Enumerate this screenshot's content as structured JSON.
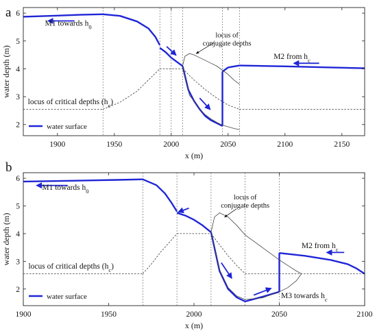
{
  "chart_data": [
    {
      "panel": "a",
      "type": "line",
      "xlabel": "x (m)",
      "ylabel": "water depth (m)",
      "xlim": [
        1870,
        2170
      ],
      "ylim": [
        1.6,
        6.2
      ],
      "xticks": [
        1900,
        1950,
        2000,
        2050,
        2100,
        2150
      ],
      "yticks": [
        2,
        3,
        4,
        5,
        6
      ],
      "legend": {
        "label": "water surface",
        "position": "bottom-left"
      },
      "breakpoints": [
        1940,
        1990,
        2000,
        2010,
        2045,
        2060
      ],
      "series": [
        {
          "name": "water surface",
          "segments": [
            {
              "x": [
                1870,
                1900,
                1920,
                1940
              ],
              "y": [
                5.87,
                5.91,
                5.94,
                5.96
              ]
            },
            {
              "x": [
                1940,
                1955,
                1970,
                1980,
                1986,
                1990
              ],
              "y": [
                5.96,
                5.9,
                5.7,
                5.45,
                5.15,
                4.85
              ]
            },
            {
              "x": [
                1990,
                1995,
                2000,
                2005,
                2010
              ],
              "y": [
                4.75,
                4.6,
                4.4,
                4.25,
                4.1
              ]
            },
            {
              "x": [
                2010,
                2015,
                2020,
                2025,
                2030,
                2035,
                2040,
                2045
              ],
              "y": [
                4.1,
                3.25,
                2.85,
                2.55,
                2.3,
                2.15,
                2.05,
                1.95
              ]
            },
            {
              "x": [
                2045,
                2045
              ],
              "y": [
                1.95,
                3.9
              ]
            },
            {
              "x": [
                2045,
                2050
              ],
              "y": [
                3.9,
                4.05
              ]
            },
            {
              "x": [
                2050,
                2060
              ],
              "y": [
                4.05,
                4.12
              ]
            },
            {
              "x": [
                2060,
                2100,
                2140,
                2170
              ],
              "y": [
                4.12,
                4.09,
                4.05,
                4.02
              ]
            }
          ]
        },
        {
          "name": "locus of conjugate depths",
          "segments": [
            {
              "x": [
                2010,
                2012,
                2016,
                2020,
                2025,
                2030,
                2035,
                2040,
                2045,
                2050,
                2055,
                2060
              ],
              "y": [
                4.1,
                4.45,
                4.55,
                4.5,
                4.4,
                4.3,
                4.2,
                4.1,
                3.95,
                3.8,
                3.6,
                3.45
              ]
            },
            {
              "x": [
                2010,
                2012,
                2016,
                2020,
                2025,
                2030,
                2035,
                2040,
                2045,
                2050,
                2055,
                2060
              ],
              "y": [
                4.1,
                3.7,
                3.05,
                2.85,
                2.55,
                2.35,
                2.2,
                2.08,
                1.98,
                1.92,
                1.86,
                1.82
              ]
            }
          ]
        },
        {
          "name": "locus of critical depths (hc)",
          "segments": [
            {
              "x": [
                1870,
                1940
              ],
              "y": [
                2.55,
                2.55
              ]
            },
            {
              "x": [
                1940,
                1955,
                1970,
                1980,
                1990
              ],
              "y": [
                2.55,
                2.8,
                3.2,
                3.6,
                4.0
              ]
            },
            {
              "x": [
                1990,
                2010
              ],
              "y": [
                4.0,
                4.0
              ]
            },
            {
              "x": [
                2010,
                2020,
                2030,
                2040,
                2050,
                2060
              ],
              "y": [
                4.0,
                3.6,
                3.25,
                2.95,
                2.7,
                2.55
              ]
            },
            {
              "x": [
                2060,
                2170
              ],
              "y": [
                2.55,
                2.55
              ]
            }
          ]
        }
      ],
      "annotations": [
        {
          "text": "M1 towards h",
          "sub": "0",
          "x": 1889,
          "y": 5.55,
          "arrow_x": [
            1915,
            1892
          ],
          "arrow_y": [
            5.72,
            5.72
          ]
        },
        {
          "text": "locus of conjugate depths",
          "x": 2049,
          "y": 5.13,
          "line2": true,
          "callout": [
            [
              2038,
              4.95
            ],
            [
              2022,
              4.55
            ]
          ]
        },
        {
          "text": "M2 from h",
          "sub": "c",
          "x": 2090,
          "y": 4.35,
          "arrow_x": [
            2130,
            2108
          ],
          "arrow_y": [
            4.2,
            4.2
          ]
        },
        {
          "text": "locus of critical depths (h",
          "sub": "c",
          "suffix": ")",
          "x": 1874,
          "y": 2.73
        },
        {
          "arrow_x": [
            1996,
            2004
          ],
          "arrow_y": [
            4.8,
            4.5
          ]
        },
        {
          "arrow_x": [
            2025,
            2034
          ],
          "arrow_y": [
            2.95,
            2.55
          ]
        }
      ]
    },
    {
      "panel": "b",
      "type": "line",
      "xlabel": "x (m)",
      "ylabel": "water depth (m)",
      "xlim": [
        1900,
        2100
      ],
      "ylim": [
        1.4,
        6.2
      ],
      "xticks": [
        1900,
        1950,
        2000,
        2050,
        2100
      ],
      "yticks": [
        2,
        3,
        4,
        5,
        6
      ],
      "legend": {
        "label": "water surface",
        "position": "bottom-left"
      },
      "breakpoints": [
        1970,
        1990,
        2010,
        2030,
        2050
      ],
      "series": [
        {
          "name": "water surface",
          "segments": [
            {
              "x": [
                1900,
                1930,
                1955,
                1970
              ],
              "y": [
                5.88,
                5.91,
                5.94,
                5.96
              ]
            },
            {
              "x": [
                1970,
                1978,
                1983,
                1987,
                1990
              ],
              "y": [
                5.96,
                5.75,
                5.45,
                5.1,
                4.8
              ]
            },
            {
              "x": [
                1990,
                1995,
                2000,
                2005,
                2010
              ],
              "y": [
                4.75,
                4.65,
                4.5,
                4.3,
                4.05
              ]
            },
            {
              "x": [
                2010,
                2015,
                2020,
                2025,
                2030
              ],
              "y": [
                4.05,
                2.65,
                2.0,
                1.7,
                1.55
              ]
            },
            {
              "x": [
                2030,
                2040,
                2050
              ],
              "y": [
                1.55,
                1.72,
                1.9
              ]
            },
            {
              "x": [
                2050,
                2050
              ],
              "y": [
                1.9,
                3.3
              ]
            },
            {
              "x": [
                2050,
                2065,
                2080,
                2090,
                2095,
                2100
              ],
              "y": [
                3.3,
                3.2,
                3.05,
                2.9,
                2.75,
                2.55
              ]
            }
          ]
        },
        {
          "name": "locus of conjugate depths",
          "segments": [
            {
              "x": [
                2010,
                2012,
                2015,
                2020,
                2025,
                2030,
                2040,
                2050,
                2055,
                2060,
                2063
              ],
              "y": [
                4.05,
                4.6,
                4.75,
                4.6,
                4.3,
                3.95,
                3.5,
                3.05,
                2.85,
                2.65,
                2.55
              ]
            },
            {
              "x": [
                2010,
                2015,
                2020,
                2025,
                2030,
                2040,
                2050,
                2055,
                2060,
                2063
              ],
              "y": [
                4.05,
                2.7,
                2.05,
                1.75,
                1.62,
                1.68,
                1.9,
                2.05,
                2.3,
                2.55
              ]
            }
          ]
        },
        {
          "name": "locus of critical depths (hc)",
          "segments": [
            {
              "x": [
                1900,
                1970
              ],
              "y": [
                2.55,
                2.55
              ]
            },
            {
              "x": [
                1970,
                1975,
                1980,
                1985,
                1990
              ],
              "y": [
                2.55,
                2.9,
                3.3,
                3.65,
                4.0
              ]
            },
            {
              "x": [
                1990,
                2010
              ],
              "y": [
                4.0,
                4.0
              ]
            },
            {
              "x": [
                2010,
                2015,
                2020,
                2025,
                2030
              ],
              "y": [
                4.0,
                3.6,
                3.2,
                2.85,
                2.55
              ]
            },
            {
              "x": [
                2030,
                2100
              ],
              "y": [
                2.55,
                2.55
              ]
            }
          ]
        }
      ],
      "annotations": [
        {
          "text": "M1 towards h",
          "sub": "0",
          "x": 1911,
          "y": 5.58,
          "arrow_x": [
            1926,
            1908
          ],
          "arrow_y": [
            5.74,
            5.74
          ]
        },
        {
          "text": "locus of conjugate depths",
          "x": 2030,
          "y": 5.23,
          "line2": true,
          "callout": [
            [
              2025,
              4.9
            ],
            [
              2018,
              4.6
            ]
          ]
        },
        {
          "text": "M2 from h",
          "sub": "c",
          "x": 2063,
          "y": 3.48,
          "arrow_x": [
            2088,
            2078
          ],
          "arrow_y": [
            3.32,
            3.32
          ]
        },
        {
          "text": "M3 towards h",
          "sub": "c",
          "x": 2051,
          "y": 1.67
        },
        {
          "text": "locus of critical depths (h",
          "sub": "c",
          "suffix": ")",
          "x": 1903,
          "y": 2.74
        },
        {
          "arrow_x": [
            1997,
            1991
          ],
          "arrow_y": [
            4.92,
            4.78
          ]
        },
        {
          "arrow_x": [
            2016,
            2022
          ],
          "arrow_y": [
            2.95,
            2.4
          ]
        },
        {
          "arrow_x": [
            2035,
            2045
          ],
          "arrow_y": [
            1.78,
            2.02
          ]
        }
      ]
    }
  ]
}
